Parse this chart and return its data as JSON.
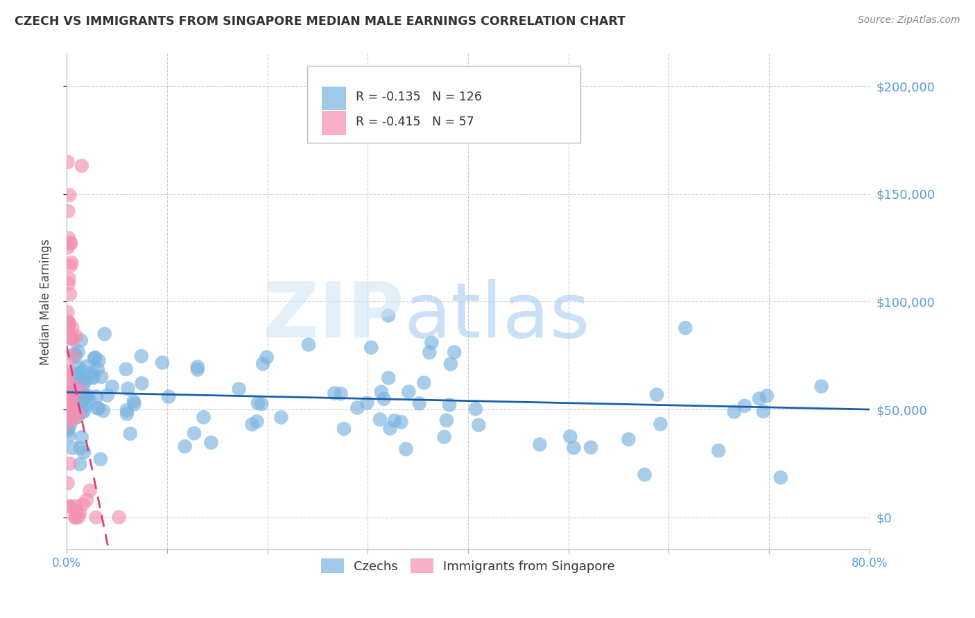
{
  "title": "CZECH VS IMMIGRANTS FROM SINGAPORE MEDIAN MALE EARNINGS CORRELATION CHART",
  "source": "Source: ZipAtlas.com",
  "ylabel": "Median Male Earnings",
  "ytick_values": [
    0,
    50000,
    100000,
    150000,
    200000
  ],
  "ytick_labels": [
    "$0",
    "$50,000",
    "$100,000",
    "$150,000",
    "$200,000"
  ],
  "xmin": 0.0,
  "xmax": 0.8,
  "ymin": -15000,
  "ymax": 215000,
  "blue_R": -0.135,
  "blue_N": 126,
  "pink_R": -0.415,
  "pink_N": 57,
  "blue_color": "#7ab3e0",
  "pink_color": "#f48fb1",
  "blue_line_color": "#1a5faa",
  "pink_line_color": "#d44080",
  "axis_color": "#5b9bd5",
  "title_color": "#333333",
  "background_color": "#ffffff",
  "grid_color": "#cccccc",
  "legend_label_blue": "Czechs",
  "legend_label_pink": "Immigrants from Singapore"
}
